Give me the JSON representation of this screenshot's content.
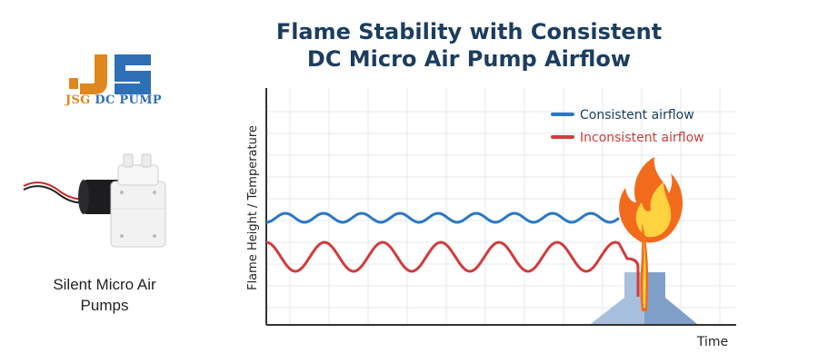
{
  "brand": {
    "letters": "JS",
    "name_prefix": "JSG",
    "name_suffix": "DC PUMP"
  },
  "product": {
    "caption_line1": "Silent Micro Air",
    "caption_line2": "Pumps"
  },
  "diagram": {
    "title_line1": "Flame Stability with Consistent",
    "title_line2": "DC Micro Air Pump Airflow",
    "y_label": "Flame Height / Temperature",
    "x_label": "Time",
    "legend": [
      {
        "label": "Consistent airflow",
        "color": "#2a78c5"
      },
      {
        "label": "Inconsistent airflow",
        "color": "#d23b3b"
      }
    ]
  },
  "colors": {
    "title": "#1b3d5f",
    "logo_blue": "#2f6fb5",
    "logo_orange": "#e0861f",
    "flame_outer": "#f26b1d",
    "flame_inner": "#ffd23f",
    "grid": "#e4e8ec"
  }
}
